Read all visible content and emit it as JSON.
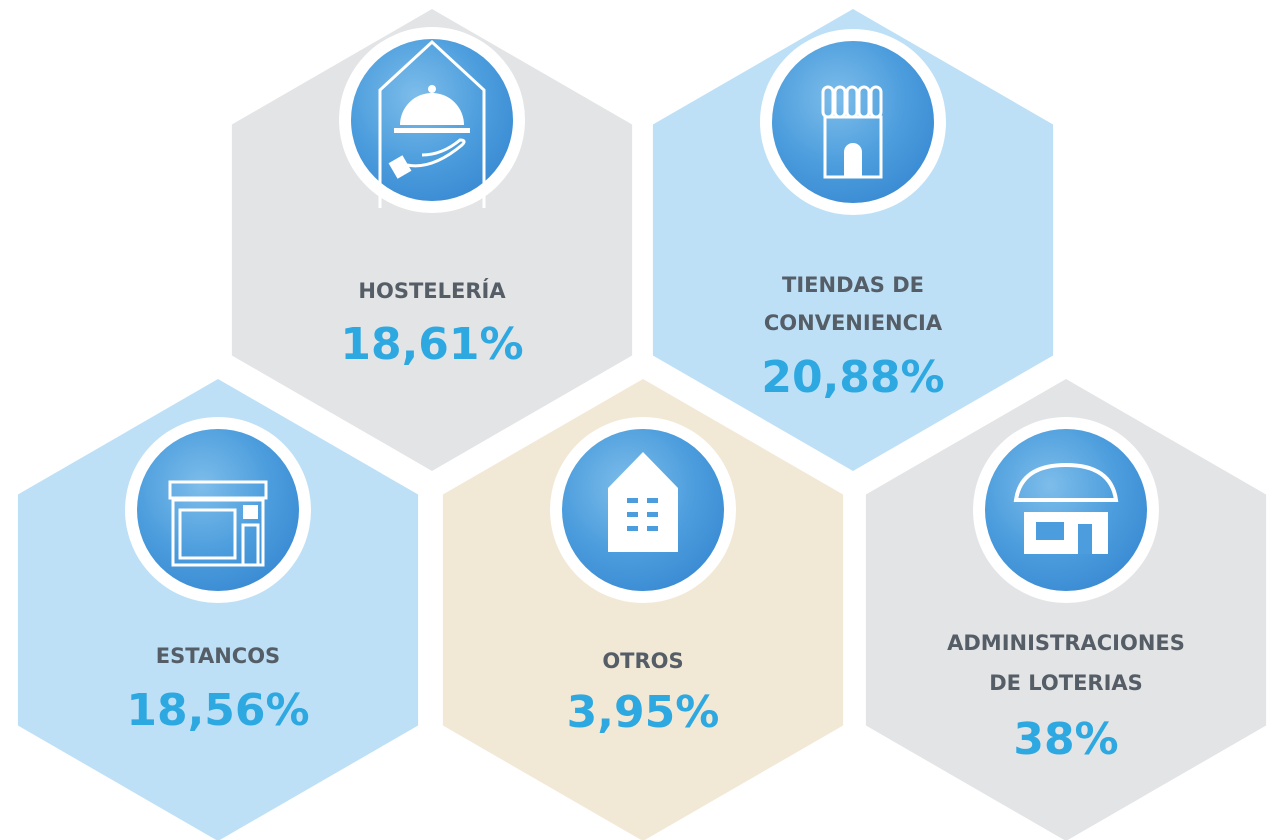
{
  "nodes": [
    {
      "label": [
        "HOSTELERÍA"
      ],
      "value": "18,61%"
    },
    {
      "label": [
        "TIENDAS DE",
        "CONVENIENCIA"
      ],
      "value": "20,88%"
    },
    {
      "label": [
        "ESTANCOS"
      ],
      "value": "18,56%"
    },
    {
      "label": [
        "OTROS"
      ],
      "value": "3,95%"
    },
    {
      "label": [
        "ADMINISTRACIONES",
        "DE LOTERIAS"
      ],
      "value": "38%"
    }
  ]
}
